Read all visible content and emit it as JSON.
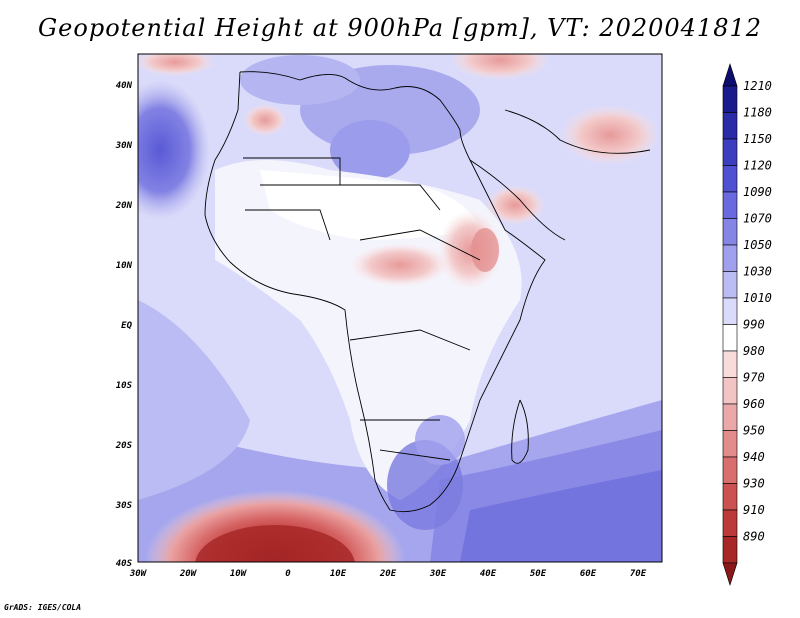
{
  "title": "Geopotential Height at 900hPa [gpm], VT: 2020041812",
  "credit": "GrADS: IGES/COLA",
  "map": {
    "lat_labels": [
      "40N",
      "30N",
      "20N",
      "10N",
      "EQ",
      "10S",
      "20S",
      "30S",
      "40S"
    ],
    "lon_labels": [
      "30W",
      "20W",
      "10W",
      "0",
      "10E",
      "20E",
      "30E",
      "40E",
      "50E",
      "60E",
      "70E"
    ],
    "lat_range": [
      -40,
      45
    ],
    "lon_range": [
      -30,
      75
    ]
  },
  "colorbar": {
    "levels": [
      "1210",
      "1180",
      "1150",
      "1120",
      "1090",
      "1070",
      "1050",
      "1030",
      "1010",
      "990",
      "980",
      "970",
      "960",
      "950",
      "940",
      "930",
      "910",
      "890"
    ],
    "colors": [
      "#1a1a8c",
      "#2b2ba8",
      "#3d3dc0",
      "#5050d2",
      "#6a6ade",
      "#8585e6",
      "#a0a0ee",
      "#bcbcf4",
      "#dadafa",
      "#ffffff",
      "#f8dcdc",
      "#f2c4c4",
      "#eba8a8",
      "#e38c8c",
      "#d96e6e",
      "#cc5252",
      "#bd3a3a",
      "#a82828"
    ],
    "top_arrow_color": "#0d0d70",
    "bottom_arrow_color": "#8a1818"
  }
}
